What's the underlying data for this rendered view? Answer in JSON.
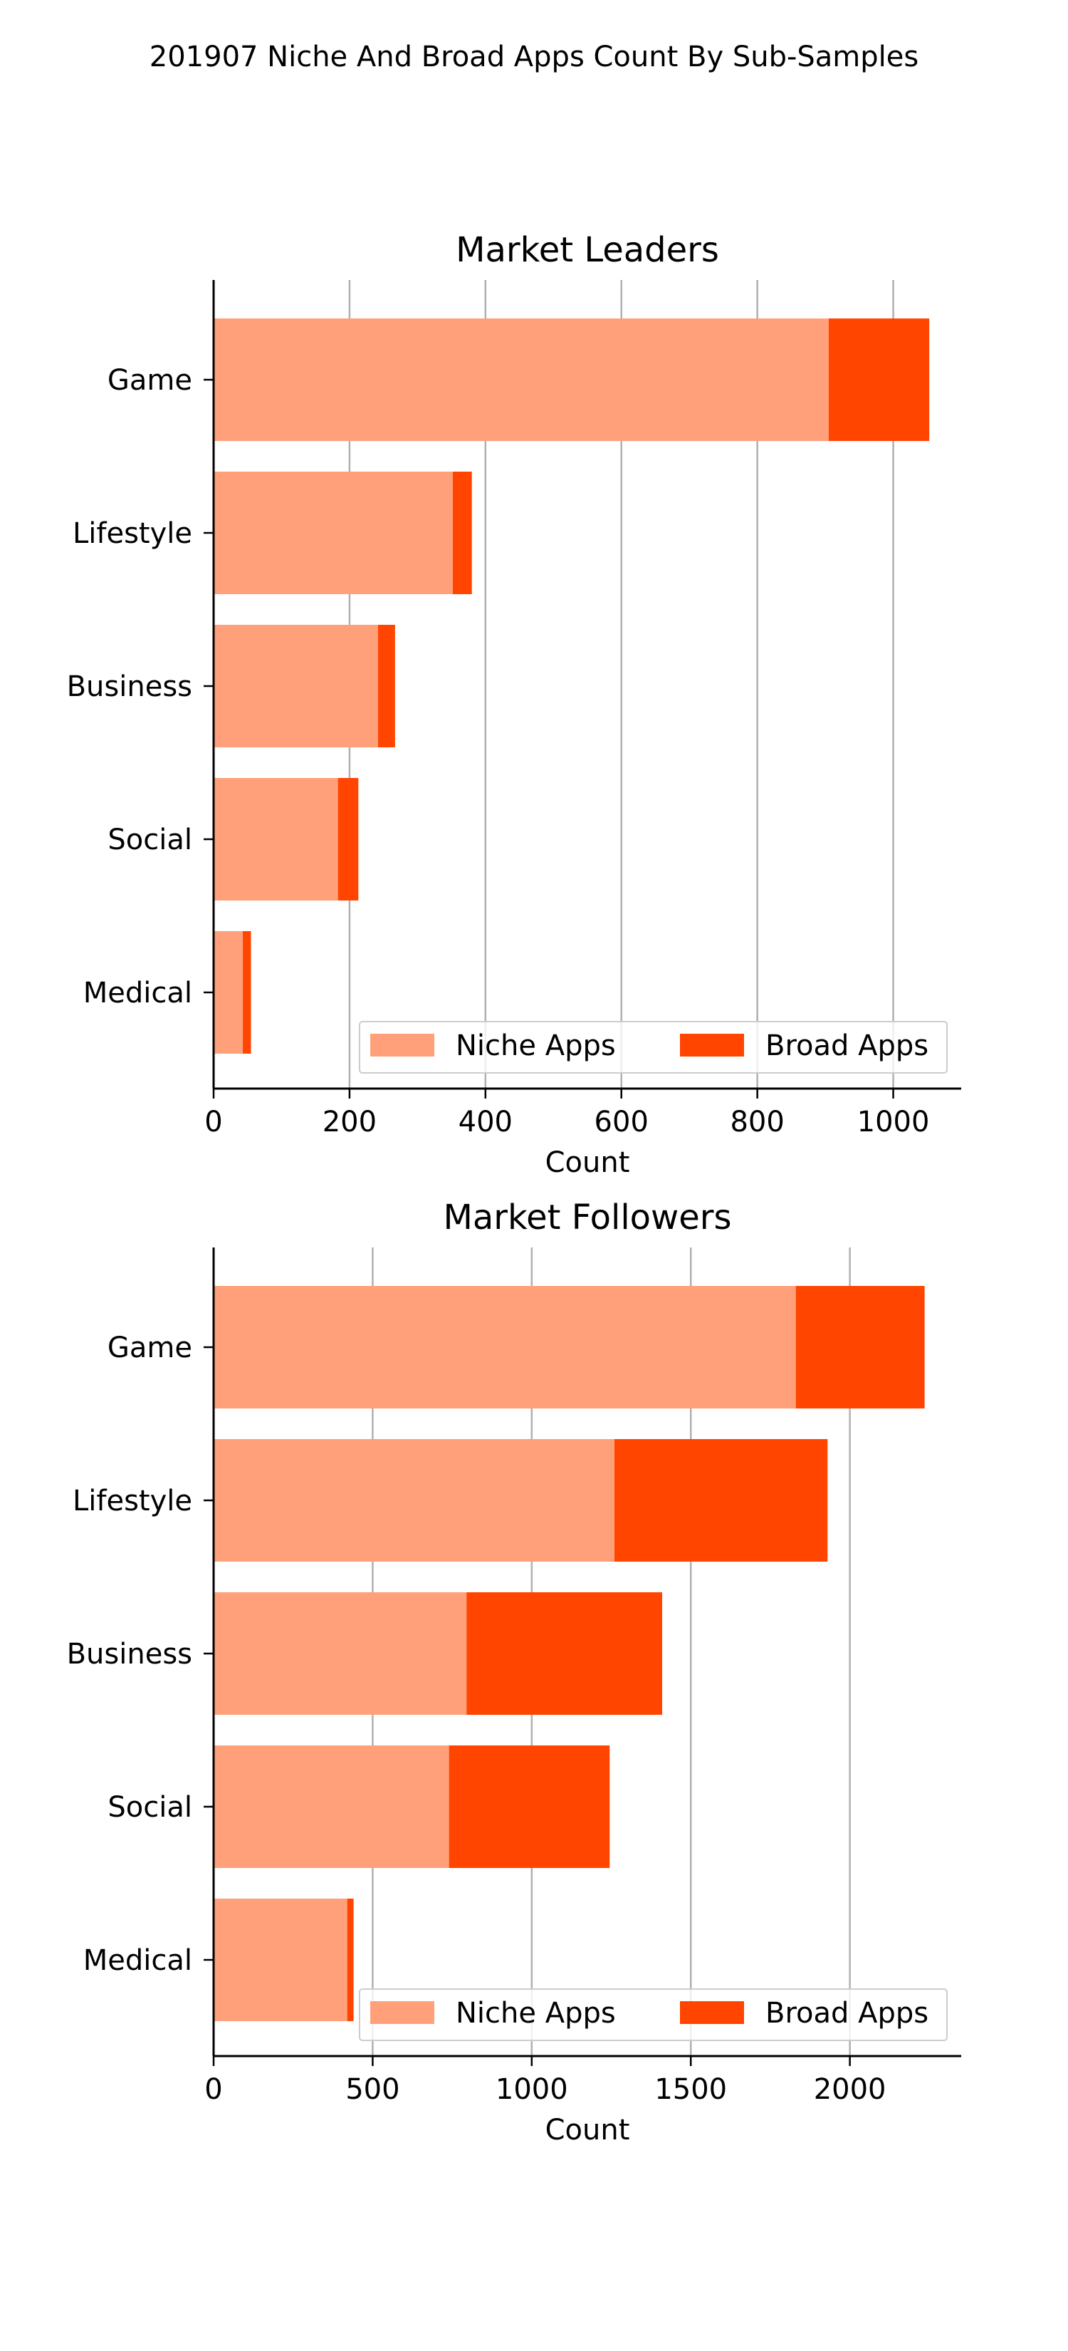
{
  "figure": {
    "title": "201907 Niche And Broad Apps Count By Sub-Samples"
  },
  "colors": {
    "niche": "#ffa07a",
    "broad": "#ff4500",
    "grid": "#b0b0b0",
    "axis": "#000000"
  },
  "chart_data": [
    {
      "type": "bar",
      "orientation": "horizontal",
      "stacked": true,
      "title": "Market Leaders",
      "xlabel": "Count",
      "ylabel": "",
      "categories": [
        "Game",
        "Lifestyle",
        "Business",
        "Social",
        "Medical"
      ],
      "series": [
        {
          "name": "Niche Apps",
          "values": [
            905,
            352,
            242,
            183,
            43
          ]
        },
        {
          "name": "Broad Apps",
          "values": [
            148,
            28,
            25,
            30,
            12
          ]
        }
      ],
      "xlim": [
        0,
        1100
      ],
      "xticks": [
        0,
        200,
        400,
        600,
        800,
        1000
      ],
      "grid": "x",
      "legend": "lower-right"
    },
    {
      "type": "bar",
      "orientation": "horizontal",
      "stacked": true,
      "title": "Market Followers",
      "xlabel": "Count",
      "ylabel": "",
      "categories": [
        "Game",
        "Lifestyle",
        "Business",
        "Social",
        "Medical"
      ],
      "series": [
        {
          "name": "Niche Apps",
          "values": [
            1830,
            1260,
            795,
            740,
            420
          ]
        },
        {
          "name": "Broad Apps",
          "values": [
            405,
            670,
            615,
            505,
            20
          ]
        }
      ],
      "xlim": [
        0,
        2350
      ],
      "xticks": [
        0,
        500,
        1000,
        1500,
        2000
      ],
      "grid": "x",
      "legend": "lower-right"
    }
  ]
}
